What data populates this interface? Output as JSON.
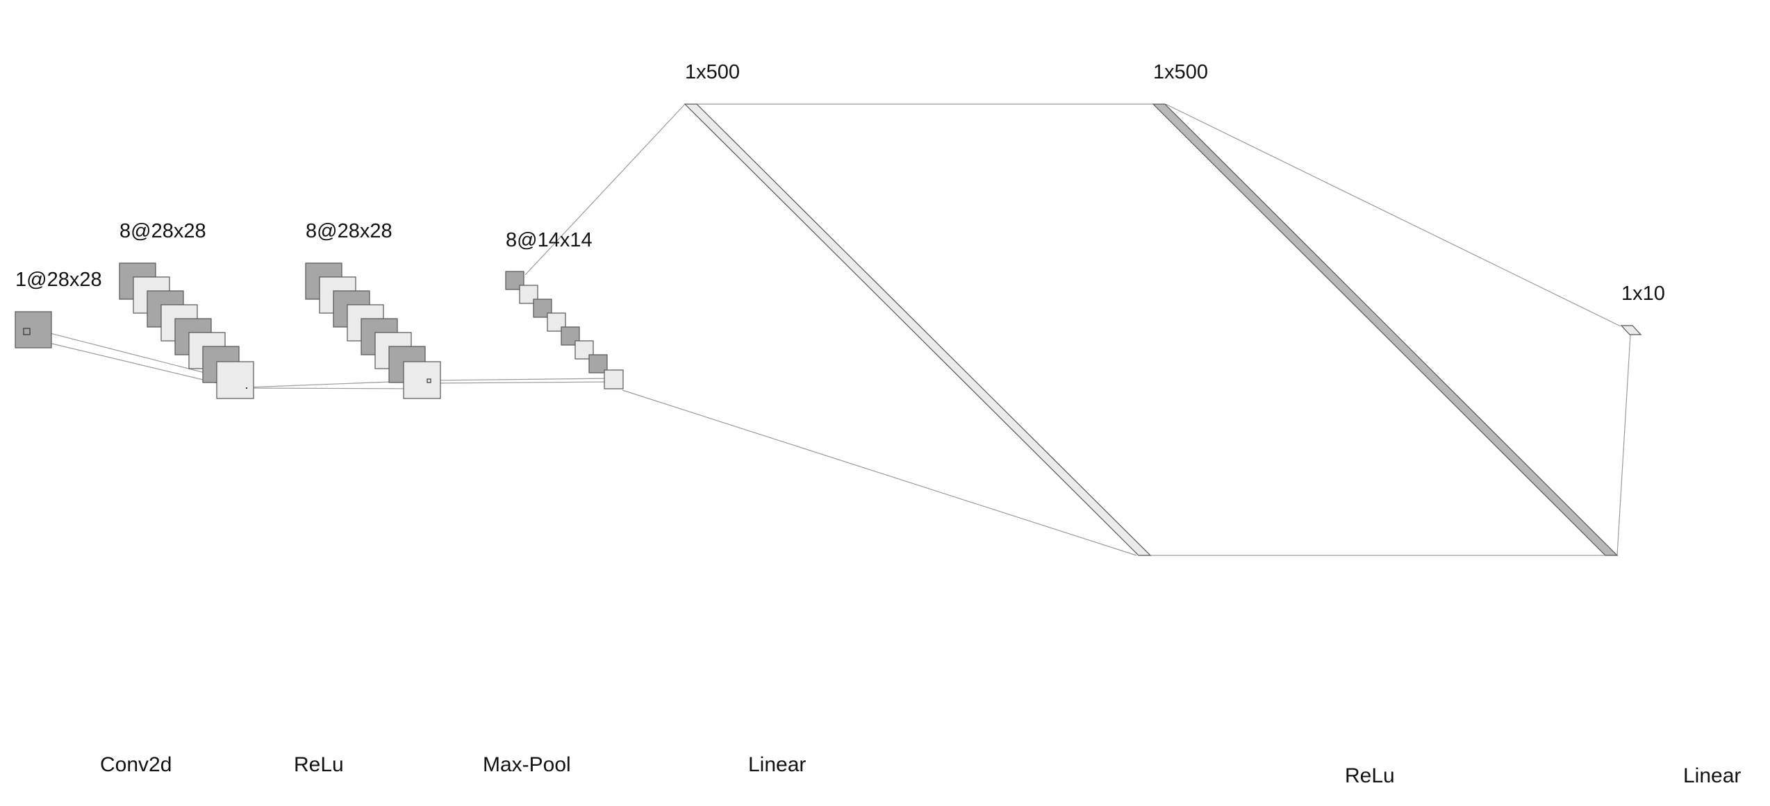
{
  "diagram": {
    "layers": [
      {
        "id": "input",
        "dims": "1@28x28"
      },
      {
        "id": "conv",
        "dims": "8@28x28"
      },
      {
        "id": "relu1",
        "dims": "8@28x28"
      },
      {
        "id": "pool",
        "dims": "8@14x14"
      },
      {
        "id": "fc1",
        "dims": "1x500"
      },
      {
        "id": "fc2",
        "dims": "1x500"
      },
      {
        "id": "out",
        "dims": "1x10"
      }
    ],
    "operations": [
      {
        "id": "op-conv2d",
        "label": "Conv2d"
      },
      {
        "id": "op-relu1",
        "label": "ReLu"
      },
      {
        "id": "op-maxpool",
        "label": "Max-Pool"
      },
      {
        "id": "op-linear1",
        "label": "Linear"
      },
      {
        "id": "op-relu2",
        "label": "ReLu"
      },
      {
        "id": "op-linear2",
        "label": "Linear"
      }
    ],
    "colors": {
      "dark_fill": "#a6a6a6",
      "light_fill": "#ebebeb",
      "stroke": "#555555",
      "connector": "#9a9a9a"
    }
  }
}
